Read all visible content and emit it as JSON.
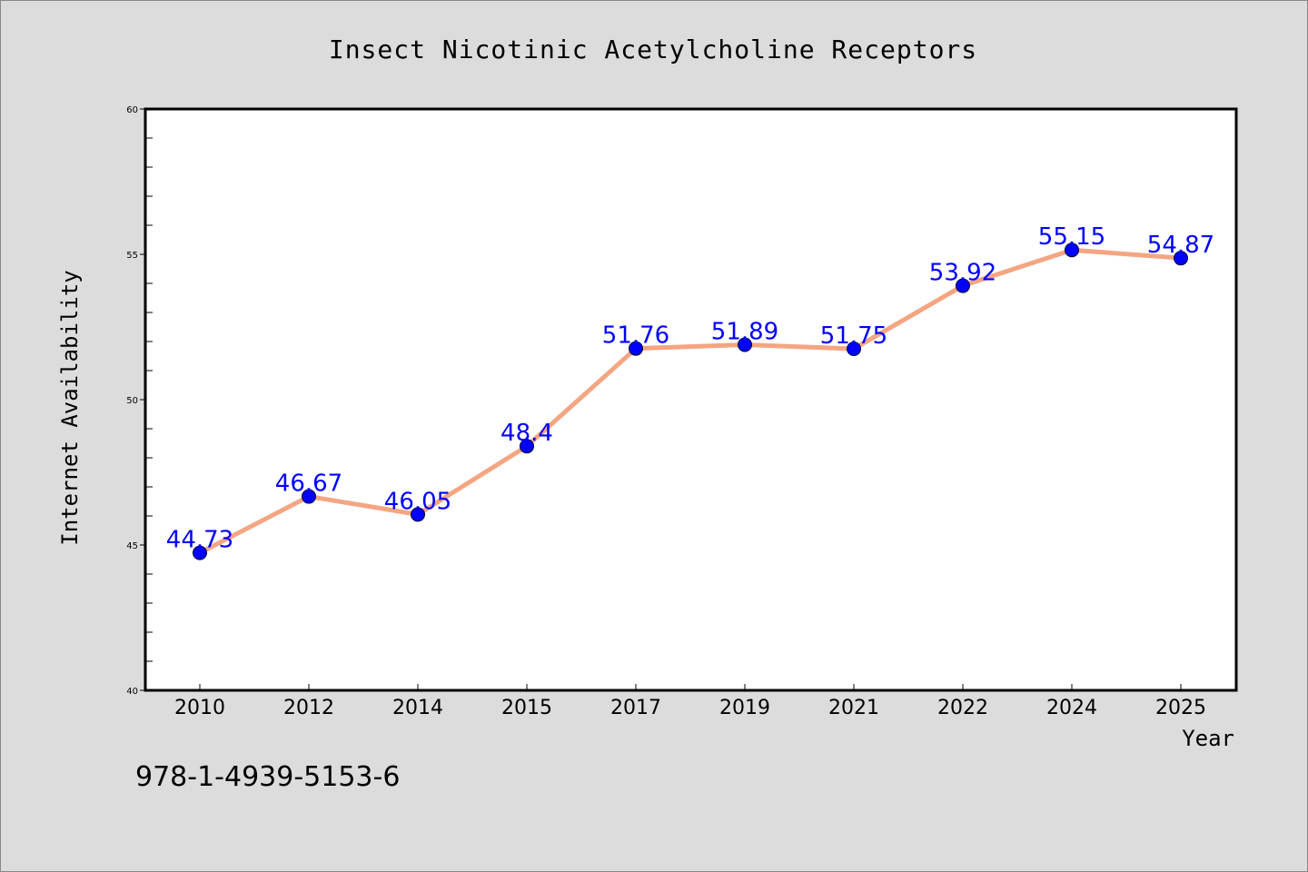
{
  "chart_data": {
    "type": "line",
    "title": "Insect Nicotinic Acetylcholine Receptors",
    "xlabel": "Year",
    "ylabel": "Internet Availability",
    "categories": [
      "2010",
      "2012",
      "2014",
      "2015",
      "2017",
      "2019",
      "2021",
      "2022",
      "2024",
      "2025"
    ],
    "series": [
      {
        "values": [
          44.73,
          46.67,
          46.05,
          48.4,
          51.76,
          51.89,
          51.75,
          53.92,
          55.15,
          54.87
        ],
        "labels": [
          "44.73",
          "46.67",
          "46.05",
          "48.4",
          "51.76",
          "51.89",
          "51.75",
          "53.92",
          "55.15",
          "54.87"
        ],
        "line_color": "#f4a582",
        "marker_color": "#0000ff",
        "label_color": "#0000ff"
      }
    ],
    "ylim": [
      40,
      60
    ],
    "yticks": [
      40,
      45,
      50,
      55,
      60
    ],
    "ytick_labels": [
      "40",
      "45",
      "50",
      "55",
      "60"
    ],
    "grid": false,
    "legend": "none"
  },
  "footer": {
    "text": "978-1-4939-5153-6"
  },
  "colors": {
    "background": "#dcdcdc",
    "plot_background": "#ffffff",
    "frame": "#000000"
  }
}
